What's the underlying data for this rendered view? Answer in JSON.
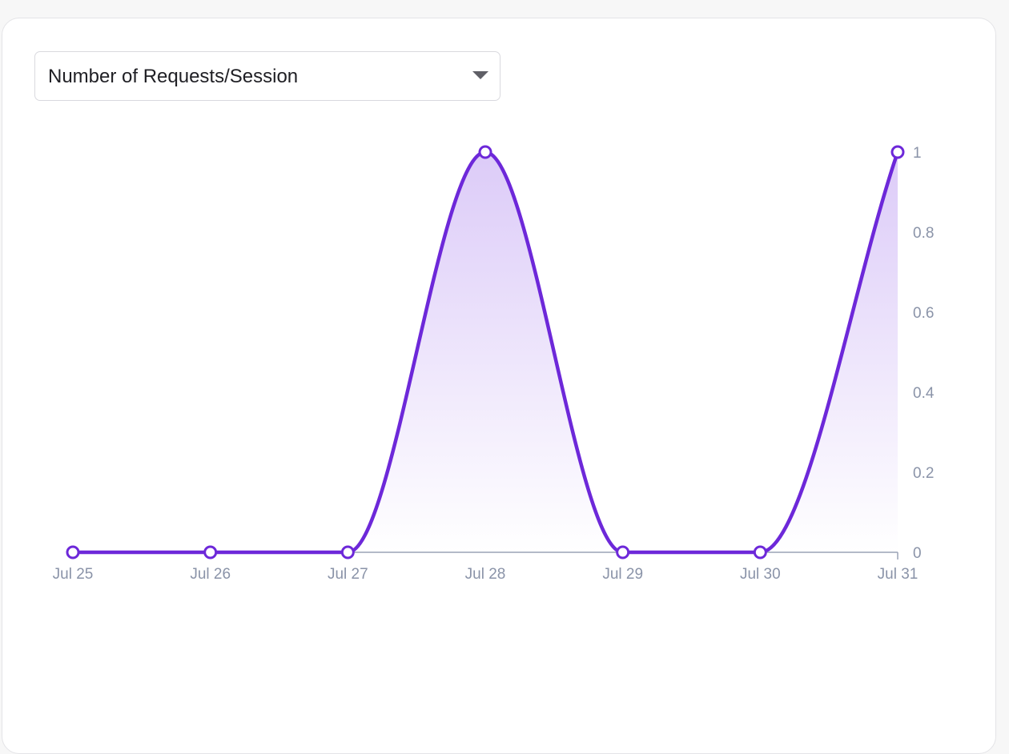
{
  "metric_selector": {
    "selected": "Number of Requests/Session",
    "caret_icon": "triangle-down-icon"
  },
  "colors": {
    "line": "#6d28d9",
    "fill_top": "#dccbf8",
    "axis": "#9aa3b5",
    "tick_text": "#8a93a8",
    "point_fill": "#ffffff"
  },
  "chart_data": {
    "type": "area",
    "x": [
      "Jul 25",
      "Jul 26",
      "Jul 27",
      "Jul 28",
      "Jul 29",
      "Jul 30",
      "Jul 31"
    ],
    "series": [
      {
        "values": [
          0,
          0,
          0,
          1,
          0,
          0,
          1
        ]
      }
    ],
    "y_ticks": [
      "0",
      "0.2",
      "0.4",
      "0.6",
      "0.8",
      "1"
    ],
    "ylim": [
      0,
      1
    ],
    "y_axis_side": "right",
    "grid": false,
    "curve": "smooth",
    "markers": "hollow-circle",
    "title": "",
    "xlabel": "",
    "ylabel": ""
  }
}
